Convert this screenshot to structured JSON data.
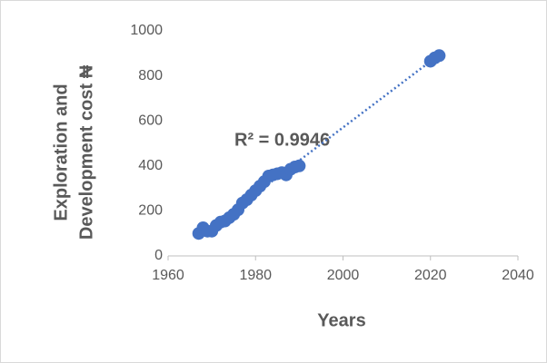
{
  "chart_data": {
    "type": "scatter",
    "annotation": "R² = 0.9946",
    "xlabel": "Years",
    "ylabel": [
      "Exploration and",
      "Development cost ₦"
    ],
    "x": [
      1967,
      1968,
      1969,
      1970,
      1971,
      1972,
      1973,
      1974,
      1975,
      1976,
      1977,
      1978,
      1979,
      1980,
      1981,
      1982,
      1983,
      1984,
      1985,
      1986,
      1987,
      1988,
      1989,
      1990,
      2020,
      2021,
      2022
    ],
    "values": [
      100,
      125,
      110,
      110,
      135,
      150,
      155,
      170,
      185,
      205,
      235,
      250,
      270,
      290,
      310,
      330,
      355,
      360,
      365,
      370,
      360,
      385,
      395,
      400,
      865,
      880,
      890
    ],
    "color": "#4472c4",
    "trendline": "linear",
    "xlim": [
      1960,
      2040
    ],
    "xticks": [
      1960,
      1980,
      2000,
      2020,
      2040
    ],
    "ylim": [
      0,
      1000
    ],
    "yticks": [
      0,
      200,
      400,
      600,
      800,
      1000
    ],
    "grid": false
  }
}
